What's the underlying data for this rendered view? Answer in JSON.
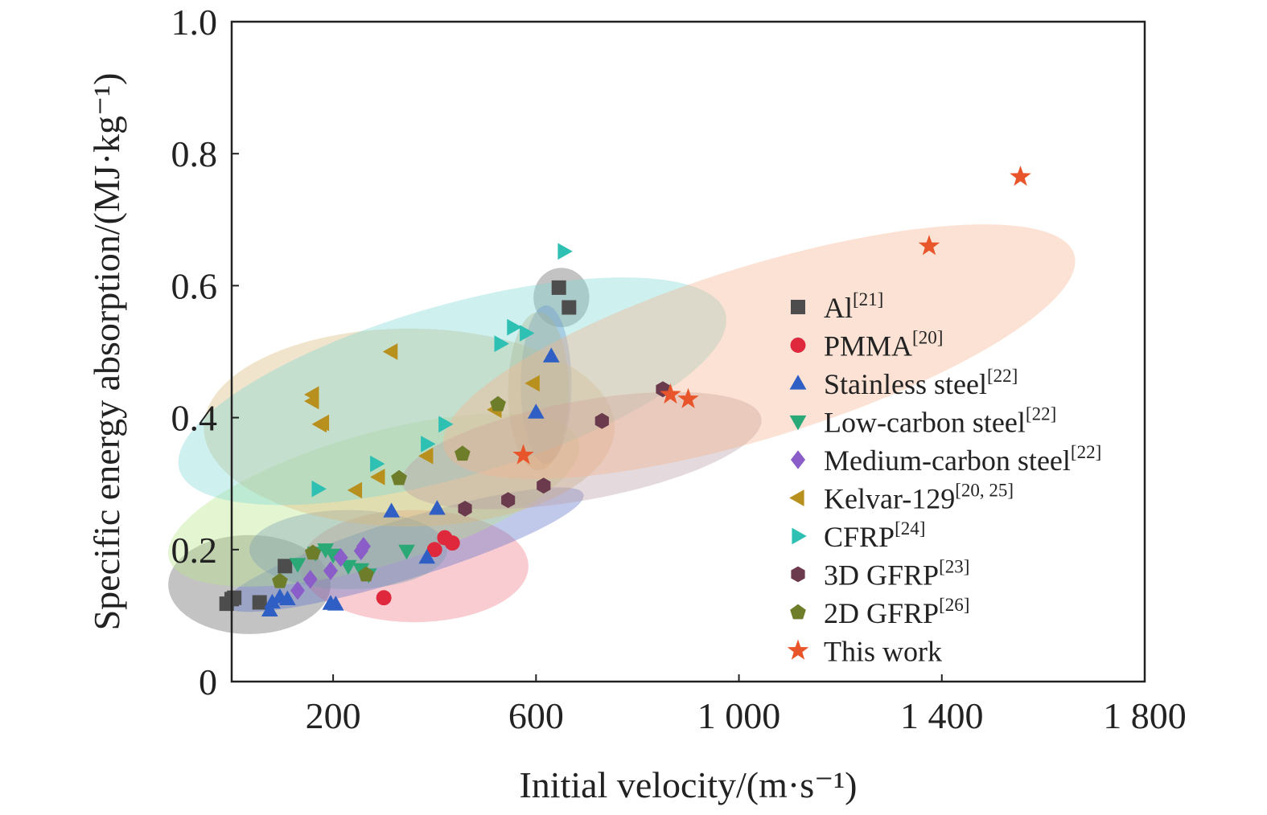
{
  "chart_data": {
    "type": "scatter",
    "xlabel": "Initial velocity/(m·s⁻¹)",
    "ylabel": "Specific energy absorption/(MJ·kg⁻¹)",
    "xlim": [
      0,
      1800
    ],
    "ylim": [
      0,
      1.0
    ],
    "x_ticks": [
      200,
      600,
      1000,
      1400,
      1800
    ],
    "x_tick_labels": [
      "200",
      "600",
      "1 000",
      "1 400",
      "1 800"
    ],
    "y_ticks": [
      0,
      0.2,
      0.4,
      0.6,
      0.8,
      1.0
    ],
    "y_tick_labels": [
      "0",
      "0.2",
      "0.4",
      "0.6",
      "0.8",
      "1.0"
    ],
    "grid": false,
    "legend_position": "right",
    "series": [
      {
        "name": "Al",
        "ref": "[21]",
        "marker": "square",
        "color": "#4d4d4d",
        "points": [
          [
            -10,
            0.118
          ],
          [
            0,
            0.125
          ],
          [
            5,
            0.127
          ],
          [
            55,
            0.12
          ],
          [
            105,
            0.175
          ],
          [
            645,
            0.597
          ],
          [
            665,
            0.567
          ]
        ]
      },
      {
        "name": "PMMA",
        "ref": "[20]",
        "marker": "circle",
        "color": "#e0283c",
        "points": [
          [
            300,
            0.127
          ],
          [
            400,
            0.2
          ],
          [
            420,
            0.218
          ],
          [
            435,
            0.21
          ]
        ]
      },
      {
        "name": "Stainless steel",
        "ref": "[22]",
        "marker": "triangle-up",
        "color": "#2f5fc4",
        "points": [
          [
            75,
            0.108
          ],
          [
            80,
            0.12
          ],
          [
            95,
            0.128
          ],
          [
            110,
            0.125
          ],
          [
            195,
            0.118
          ],
          [
            205,
            0.117
          ],
          [
            315,
            0.258
          ],
          [
            405,
            0.262
          ],
          [
            385,
            0.188
          ],
          [
            600,
            0.408
          ],
          [
            630,
            0.493
          ]
        ]
      },
      {
        "name": "Low-carbon steel",
        "ref": "[22]",
        "marker": "triangle-down",
        "color": "#2aa876",
        "points": [
          [
            130,
            0.178
          ],
          [
            165,
            0.195
          ],
          [
            185,
            0.2
          ],
          [
            200,
            0.192
          ],
          [
            230,
            0.175
          ],
          [
            255,
            0.17
          ],
          [
            270,
            0.162
          ],
          [
            345,
            0.198
          ]
        ]
      },
      {
        "name": "Medium-carbon steel",
        "ref": "[22]",
        "marker": "diamond",
        "color": "#8a5dc8",
        "points": [
          [
            130,
            0.138
          ],
          [
            155,
            0.155
          ],
          [
            195,
            0.168
          ],
          [
            215,
            0.188
          ],
          [
            255,
            0.198
          ],
          [
            260,
            0.205
          ]
        ]
      },
      {
        "name": "Kelvar-129",
        "ref": "[20, 25]",
        "marker": "triangle-left",
        "color": "#b8901e",
        "points": [
          [
            160,
            0.425
          ],
          [
            160,
            0.435
          ],
          [
            175,
            0.39
          ],
          [
            180,
            0.392
          ],
          [
            245,
            0.29
          ],
          [
            290,
            0.31
          ],
          [
            315,
            0.5
          ],
          [
            385,
            0.342
          ],
          [
            520,
            0.412
          ],
          [
            595,
            0.452
          ]
        ]
      },
      {
        "name": "CFRP",
        "ref": "[24]",
        "marker": "triangle-right",
        "color": "#2fc0b4",
        "points": [
          [
            170,
            0.292
          ],
          [
            285,
            0.33
          ],
          [
            385,
            0.36
          ],
          [
            420,
            0.39
          ],
          [
            530,
            0.512
          ],
          [
            555,
            0.537
          ],
          [
            580,
            0.528
          ],
          [
            655,
            0.652
          ]
        ]
      },
      {
        "name": "3D GFRP",
        "ref": "[23]",
        "marker": "hexagon",
        "color": "#6b3a4d",
        "points": [
          [
            460,
            0.262
          ],
          [
            545,
            0.275
          ],
          [
            615,
            0.297
          ],
          [
            730,
            0.395
          ],
          [
            850,
            0.443
          ]
        ]
      },
      {
        "name": "2D GFRP",
        "ref": "[26]",
        "marker": "pentagon",
        "color": "#6e7d2a",
        "points": [
          [
            95,
            0.152
          ],
          [
            160,
            0.195
          ],
          [
            265,
            0.162
          ],
          [
            330,
            0.308
          ],
          [
            455,
            0.345
          ],
          [
            525,
            0.42
          ]
        ]
      },
      {
        "name": "This work",
        "marker": "star",
        "color": "#e8552a",
        "points": [
          [
            575,
            0.343
          ],
          [
            865,
            0.435
          ],
          [
            900,
            0.428
          ],
          [
            1375,
            0.66
          ],
          [
            1555,
            0.765
          ]
        ]
      }
    ],
    "regions": [
      {
        "series": "Al",
        "cx": 35,
        "cy": 0.147,
        "rx": 160,
        "ry": 0.075,
        "angle": 0,
        "color": "#606060"
      },
      {
        "series": "Al",
        "cx": 650,
        "cy": 0.582,
        "rx": 55,
        "ry": 0.045,
        "angle": 0,
        "color": "#606060"
      },
      {
        "series": "PMMA",
        "cx": 360,
        "cy": 0.175,
        "rx": 225,
        "ry": 0.085,
        "angle": 0,
        "color": "#f07a86"
      },
      {
        "series": "Stainless steel",
        "cx": 340,
        "cy": 0.2,
        "rx": 370,
        "ry": 0.045,
        "angle": 0.3,
        "color": "#5a72c8"
      },
      {
        "series": "Stainless steel",
        "cx": 620,
        "cy": 0.45,
        "rx": 50,
        "ry": 0.12,
        "angle": 0,
        "color": "#5a72c8"
      },
      {
        "series": "Low-carbon steel",
        "cx": 280,
        "cy": 0.275,
        "rx": 420,
        "ry": 0.1,
        "angle": 0.28,
        "color": "#b8e68a"
      },
      {
        "series": "Medium-carbon steel",
        "cx": 230,
        "cy": 0.2,
        "rx": 195,
        "ry": 0.06,
        "angle": 0,
        "color": "#7b9fb0"
      },
      {
        "series": "Kelvar-129",
        "cx": 350,
        "cy": 0.385,
        "rx": 405,
        "ry": 0.15,
        "angle": 0,
        "color": "#d9b97a"
      },
      {
        "series": "Kelvar-129",
        "cx": 605,
        "cy": 0.44,
        "rx": 60,
        "ry": 0.12,
        "angle": 0,
        "color": "#c9a46a"
      },
      {
        "series": "CFRP",
        "cx": 435,
        "cy": 0.44,
        "rx": 560,
        "ry": 0.13,
        "angle": 0.28,
        "color": "#7dd8d4"
      },
      {
        "series": "3D GFRP",
        "cx": 690,
        "cy": 0.35,
        "rx": 360,
        "ry": 0.075,
        "angle": 0.18,
        "color": "#b89aa2"
      },
      {
        "series": "This work",
        "cx": 1040,
        "cy": 0.5,
        "rx": 650,
        "ry": 0.13,
        "angle": 0.3,
        "color": "#f7b28e"
      }
    ]
  }
}
